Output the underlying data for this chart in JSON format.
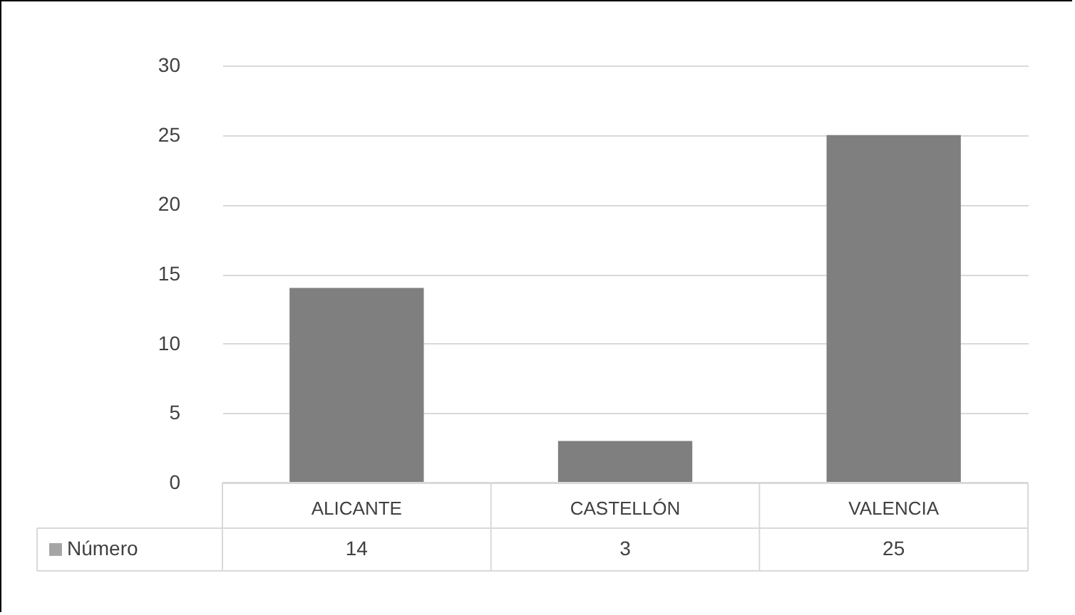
{
  "chart_data": {
    "type": "bar",
    "categories": [
      "ALICANTE",
      "CASTELLÓN",
      "VALENCIA"
    ],
    "series": [
      {
        "name": "Número",
        "color": "#7f7f7f",
        "values": [
          14,
          3,
          25
        ]
      }
    ],
    "ylim": [
      0,
      30
    ],
    "yticks": [
      0,
      5,
      10,
      15,
      20,
      25,
      30
    ],
    "grid": "y",
    "legend": "bottom left",
    "data_labels": true
  }
}
